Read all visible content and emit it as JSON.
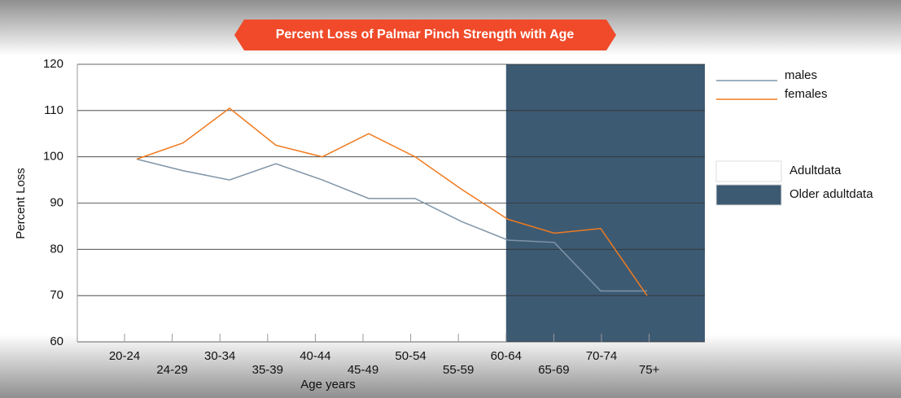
{
  "chart_data": {
    "type": "line",
    "title": "Percent Loss of Palmar Pinch Strength with Age",
    "x_label": "Age years",
    "y_label": "Percent Loss",
    "categories": [
      "20-24",
      "24-29",
      "30-34",
      "35-39",
      "40-44",
      "45-49",
      "50-54",
      "55-59",
      "60-64",
      "65-69",
      "70-74",
      "75+"
    ],
    "series": [
      {
        "name": "males",
        "color": "#7f95a8",
        "values": [
          99.5,
          97,
          95,
          98.5,
          95,
          91,
          91,
          86,
          82,
          81.5,
          71,
          71
        ]
      },
      {
        "name": "females",
        "color": "#f07a1e",
        "values": [
          99.5,
          103,
          110.5,
          102.5,
          100,
          105,
          100,
          93,
          86.5,
          83.5,
          84.5,
          70
        ]
      }
    ],
    "regions": [
      {
        "name": "Adultdata",
        "color": "#ffffff",
        "from": "20-24"
      },
      {
        "name": "Older adultdata",
        "color": "#3d5a73",
        "from": "60-64"
      }
    ],
    "ylim": [
      60,
      120
    ],
    "yticks": [
      60,
      70,
      80,
      90,
      100,
      110,
      120
    ],
    "grid": true
  }
}
